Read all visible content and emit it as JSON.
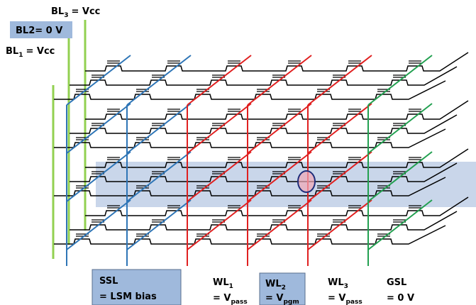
{
  "bit_lines": [
    {
      "name": "BL",
      "sub": "3",
      "value": "= Vcc"
    },
    {
      "label": "BL2= 0 V"
    },
    {
      "name": "BL",
      "sub": "1",
      "value": "= Vcc"
    }
  ],
  "gate_lines": [
    {
      "name": "SSL",
      "value": "= LSM bias"
    },
    {
      "name": "WL",
      "sub": "1",
      "value": "= V",
      "value_sub": "pass"
    },
    {
      "name": "WL",
      "sub": "2",
      "value": "= V",
      "value_sub": "pgm"
    },
    {
      "name": "WL",
      "sub": "3",
      "value": "= V",
      "value_sub": "pass"
    },
    {
      "name": "GSL",
      "value": "= 0 V"
    }
  ]
}
